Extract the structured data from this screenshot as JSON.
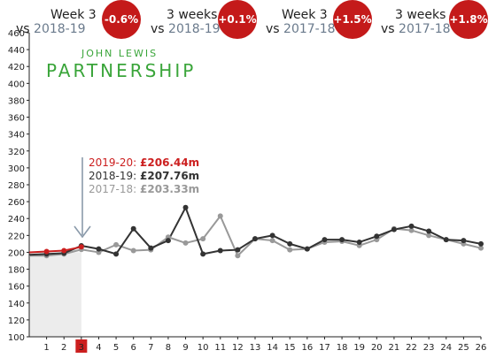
{
  "header": {
    "items": [
      {
        "line1": "Week 3",
        "vs": "vs",
        "year": "2018-19",
        "badge": "-0.6%"
      },
      {
        "line1": "3 weeks",
        "vs": "vs",
        "year": "2018-19",
        "badge": "+0.1%"
      },
      {
        "line1": "Week 3",
        "vs": "vs",
        "year": "2017-18",
        "badge": "+1.5%"
      },
      {
        "line1": "3 weeks",
        "vs": "vs",
        "year": "2017-18",
        "badge": "+1.8%"
      }
    ]
  },
  "logo": {
    "line1": "JOHN LEWIS",
    "line2": "PARTNERSHIP"
  },
  "annotation": {
    "rows": [
      {
        "label": "2019-20:",
        "value": "£206.44m"
      },
      {
        "label": "2018-19:",
        "value": "£207.76m"
      },
      {
        "label": "2017-18:",
        "value": "£203.33m"
      }
    ]
  },
  "colors": {
    "current": "#cc1f1f",
    "prior": "#333333",
    "older": "#999999",
    "shade": "#ececec",
    "badge": "#c41a1a",
    "logo": "#3aa53a",
    "arrow": "#8a9aaa"
  },
  "chart_data": {
    "type": "line",
    "x": [
      1,
      2,
      3,
      4,
      5,
      6,
      7,
      8,
      9,
      10,
      11,
      12,
      13,
      14,
      15,
      16,
      17,
      18,
      19,
      20,
      21,
      22,
      23,
      24,
      25,
      26
    ],
    "ylim": [
      100,
      460
    ],
    "xlim": [
      0,
      26
    ],
    "yticks": [
      100,
      120,
      140,
      160,
      180,
      200,
      220,
      240,
      260,
      280,
      300,
      320,
      340,
      360,
      380,
      400,
      420,
      440,
      460
    ],
    "highlight_x": 3,
    "shaded_range": [
      0,
      3
    ],
    "series": [
      {
        "name": "2019-20",
        "x": [
          0,
          1,
          2,
          3
        ],
        "values": [
          200,
          201,
          202,
          206.44
        ]
      },
      {
        "name": "2018-19",
        "x": [
          0,
          1,
          2,
          3,
          4,
          5,
          6,
          7,
          8,
          9,
          10,
          11,
          12,
          13,
          14,
          15,
          16,
          17,
          18,
          19,
          20,
          21,
          22,
          23,
          24,
          25,
          26
        ],
        "values": [
          197,
          198,
          199,
          207.76,
          204,
          198,
          228,
          205,
          214,
          253,
          198,
          202,
          203,
          216,
          220,
          210,
          204,
          215,
          215,
          212,
          219,
          227,
          231,
          225,
          215,
          214,
          210
        ]
      },
      {
        "name": "2017-18",
        "x": [
          0,
          1,
          2,
          3,
          4,
          5,
          6,
          7,
          8,
          9,
          10,
          11,
          12,
          13,
          14,
          15,
          16,
          17,
          18,
          19,
          20,
          21,
          22,
          23,
          24,
          25,
          26
        ],
        "values": [
          196,
          196,
          198,
          203.33,
          200,
          209,
          202,
          203,
          218,
          211,
          216,
          243,
          196,
          216,
          214,
          203,
          204,
          212,
          213,
          208,
          215,
          228,
          226,
          220,
          215,
          210,
          205
        ]
      }
    ]
  }
}
